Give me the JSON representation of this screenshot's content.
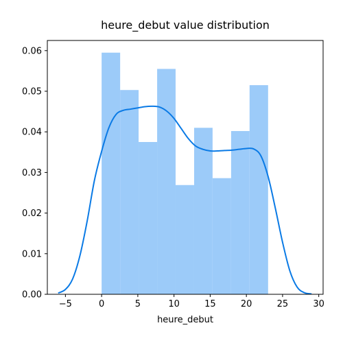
{
  "chart_data": {
    "type": "bar",
    "title": "heure_debut value distribution",
    "xlabel": "heure_debut",
    "ylabel": "",
    "xlim": [
      -7.5,
      30.6
    ],
    "ylim": [
      0,
      0.0625
    ],
    "xticks": [
      -5,
      0,
      5,
      10,
      15,
      20,
      25,
      30
    ],
    "yticks": [
      0.0,
      0.01,
      0.02,
      0.03,
      0.04,
      0.05,
      0.06
    ],
    "grid": false,
    "histogram": {
      "bin_edges": [
        0,
        2.56,
        5.11,
        7.67,
        10.22,
        12.78,
        15.33,
        17.89,
        20.44,
        23
      ],
      "density": [
        0.0595,
        0.0503,
        0.0375,
        0.0555,
        0.0269,
        0.041,
        0.0286,
        0.0402,
        0.0515
      ],
      "color": "#9ccbf9"
    },
    "kde": {
      "x": [
        -6.0,
        -5.0,
        -4.0,
        -3.0,
        -2.0,
        -1.0,
        0.0,
        1.0,
        2.0,
        3.0,
        4.0,
        5.0,
        6.0,
        7.0,
        8.0,
        9.0,
        10.0,
        11.0,
        12.0,
        13.0,
        14.0,
        15.0,
        16.0,
        17.0,
        18.0,
        19.0,
        20.0,
        21.0,
        22.0,
        23.0,
        24.0,
        25.0,
        26.0,
        27.0,
        28.0,
        29.0
      ],
      "y": [
        0.0003,
        0.0012,
        0.0038,
        0.0095,
        0.018,
        0.028,
        0.0352,
        0.041,
        0.0443,
        0.0453,
        0.0456,
        0.0459,
        0.0462,
        0.0463,
        0.0461,
        0.0451,
        0.0433,
        0.0408,
        0.0383,
        0.0365,
        0.0357,
        0.0353,
        0.0353,
        0.0354,
        0.0355,
        0.0357,
        0.0359,
        0.0358,
        0.0341,
        0.029,
        0.0212,
        0.0128,
        0.0058,
        0.0018,
        0.0004,
        0.0001
      ],
      "color": "#0a7ae5"
    }
  }
}
